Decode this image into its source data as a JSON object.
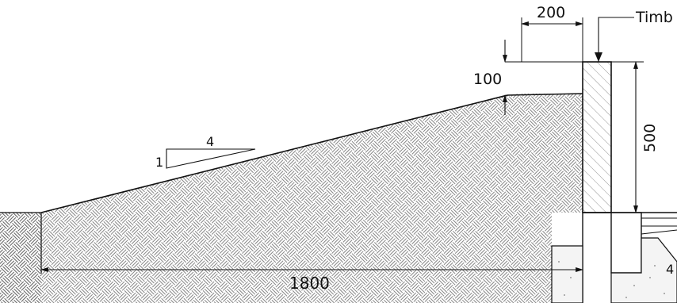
{
  "dimensions": {
    "crest_width": "200",
    "crest_height": "100",
    "wall_height": "500",
    "slope_rise": "1",
    "slope_run": "4",
    "base_length": "1800"
  },
  "labels": {
    "timber": "Timb"
  },
  "colors": {
    "line": "#111111",
    "hatch": "#666666",
    "wall_hatch": "#888888",
    "background": "#ffffff"
  }
}
